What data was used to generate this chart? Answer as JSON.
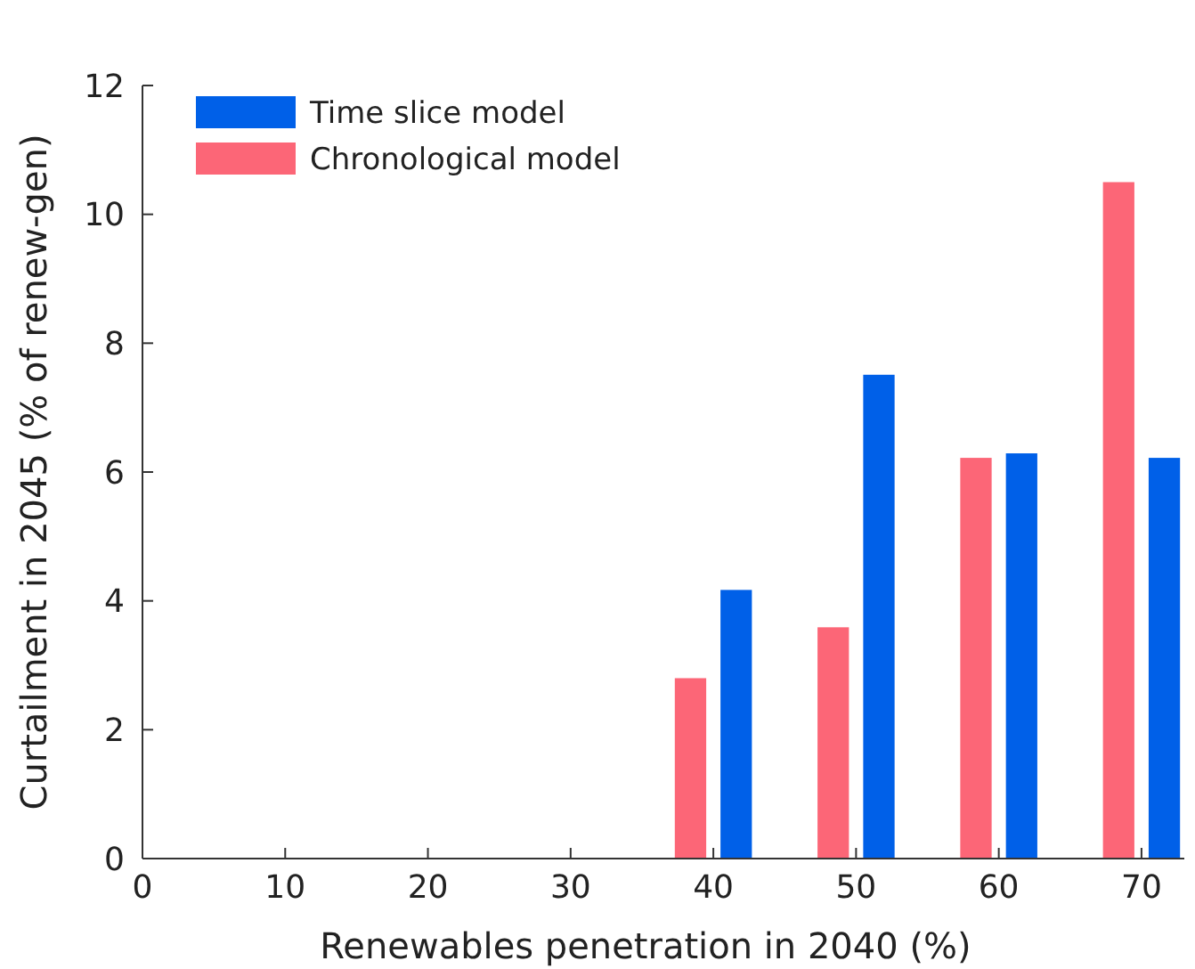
{
  "chart_data": {
    "type": "bar",
    "xlabel": "Renewables penetration in 2040 (%)",
    "ylabel": "Curtailment in 2045 (% of renew-gen)",
    "x": [
      40,
      50,
      60,
      70
    ],
    "series": [
      {
        "name": "Time slice model",
        "color": "#0060e8",
        "values": [
          4.17,
          7.51,
          6.29,
          6.22
        ]
      },
      {
        "name": "Chronological model",
        "color": "#fc6677",
        "values": [
          2.8,
          3.59,
          6.22,
          10.5
        ]
      }
    ],
    "xlim": [
      0,
      73
    ],
    "xticks": [
      0,
      10,
      20,
      30,
      40,
      50,
      60,
      70
    ],
    "ylim": [
      0,
      12
    ],
    "yticks": [
      0,
      2,
      4,
      6,
      8,
      10,
      12
    ],
    "grid": false,
    "legend": "top left"
  }
}
